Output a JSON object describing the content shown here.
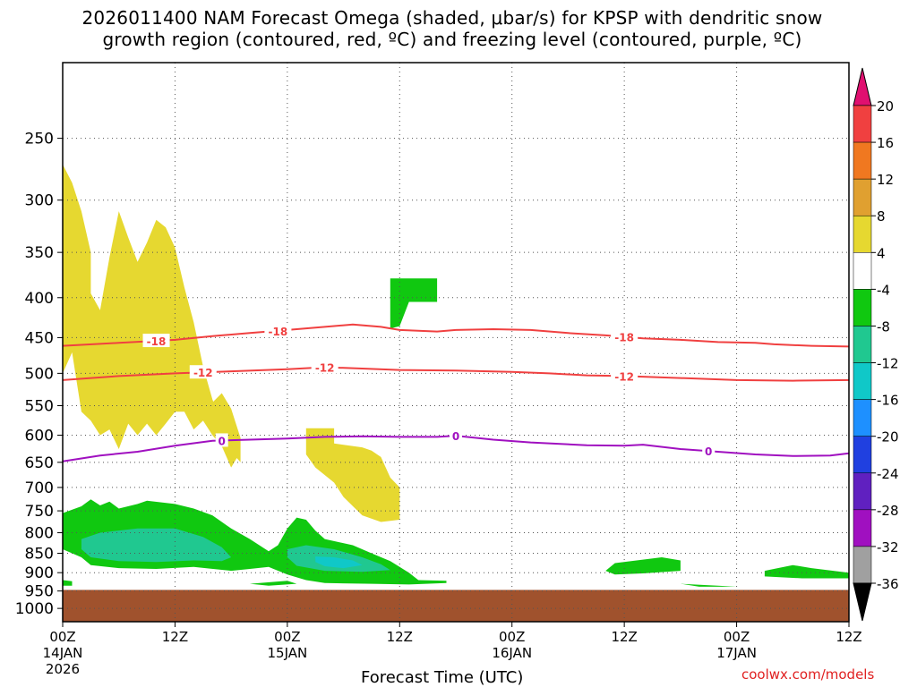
{
  "title_line1": "2026011400 NAM Forecast Omega (shaded, μbar/s) for KPSP with dendritic snow",
  "title_line2": "growth region (contoured, red, ºC) and freezing level (contoured, purple, ºC)",
  "credit": "coolwx.com/models",
  "chart_data": {
    "type": "heatmap",
    "xlabel": "Forecast Time (UTC)",
    "ylabel": "",
    "x_unit": "forecast hour",
    "xlim": [
      0,
      84
    ],
    "ylim": [
      1040,
      200
    ],
    "y_scale": "log",
    "grid": true,
    "x_ticks": [
      {
        "hour": 0,
        "label": "00Z",
        "date": "14JAN",
        "year": "2026"
      },
      {
        "hour": 12,
        "label": "12Z"
      },
      {
        "hour": 24,
        "label": "00Z",
        "date": "15JAN"
      },
      {
        "hour": 36,
        "label": "12Z"
      },
      {
        "hour": 48,
        "label": "00Z",
        "date": "16JAN"
      },
      {
        "hour": 60,
        "label": "12Z"
      },
      {
        "hour": 72,
        "label": "00Z",
        "date": "17JAN"
      },
      {
        "hour": 84,
        "label": "12Z"
      }
    ],
    "y_ticks": [
      "250",
      "300",
      "350",
      "400",
      "450",
      "500",
      "550",
      "600",
      "650",
      "700",
      "750",
      "800",
      "850",
      "900",
      "950",
      "1000"
    ],
    "ground_level_hpa": 947,
    "colorbar": {
      "labels": [
        "20",
        "16",
        "12",
        "8",
        "4",
        "-4",
        "-8",
        "-12",
        "-16",
        "-20",
        "-24",
        "-28",
        "-32",
        "-36"
      ],
      "colors": [
        "#e01070",
        "#f04040",
        "#f07820",
        "#e0a030",
        "#e6d830",
        "#ffffff",
        "#10c810",
        "#20c890",
        "#10c8c8",
        "#1e90ff",
        "#2040e0",
        "#6020c0",
        "#a010c0",
        "#a0a0a0",
        "#000000"
      ]
    },
    "contours": [
      {
        "name": "-18",
        "color": "#f04040",
        "label_hours": [
          10,
          23,
          60
        ],
        "points": [
          [
            0,
            461
          ],
          [
            6,
            457
          ],
          [
            12,
            453
          ],
          [
            16,
            448
          ],
          [
            20,
            444
          ],
          [
            24,
            440
          ],
          [
            28,
            436
          ],
          [
            31,
            433
          ],
          [
            34,
            436
          ],
          [
            36,
            440
          ],
          [
            40,
            442
          ],
          [
            42,
            440
          ],
          [
            46,
            439
          ],
          [
            50,
            440
          ],
          [
            54,
            444
          ],
          [
            58,
            447
          ],
          [
            62,
            451
          ],
          [
            66,
            453
          ],
          [
            70,
            456
          ],
          [
            74,
            457
          ],
          [
            76,
            459
          ],
          [
            80,
            461
          ],
          [
            84,
            462
          ]
        ]
      },
      {
        "name": "-12",
        "color": "#f04040",
        "label_hours": [
          15,
          28,
          60
        ],
        "points": [
          [
            0,
            510
          ],
          [
            6,
            504
          ],
          [
            12,
            500
          ],
          [
            18,
            497
          ],
          [
            24,
            494
          ],
          [
            28,
            491
          ],
          [
            32,
            493
          ],
          [
            36,
            495
          ],
          [
            42,
            496
          ],
          [
            48,
            498
          ],
          [
            52,
            500
          ],
          [
            56,
            503
          ],
          [
            60,
            504
          ],
          [
            66,
            507
          ],
          [
            72,
            510
          ],
          [
            78,
            511
          ],
          [
            84,
            510
          ]
        ]
      },
      {
        "name": "0",
        "color": "#a010c0",
        "label_hours": [
          17,
          42,
          69
        ],
        "points": [
          [
            0,
            648
          ],
          [
            4,
            637
          ],
          [
            8,
            630
          ],
          [
            12,
            619
          ],
          [
            16,
            610
          ],
          [
            20,
            608
          ],
          [
            24,
            606
          ],
          [
            28,
            603
          ],
          [
            32,
            602
          ],
          [
            36,
            603
          ],
          [
            40,
            603
          ],
          [
            42,
            601
          ],
          [
            46,
            608
          ],
          [
            50,
            613
          ],
          [
            56,
            618
          ],
          [
            60,
            619
          ],
          [
            62,
            617
          ],
          [
            66,
            625
          ],
          [
            70,
            630
          ],
          [
            74,
            635
          ],
          [
            78,
            638
          ],
          [
            82,
            637
          ],
          [
            84,
            633
          ]
        ]
      }
    ],
    "shaded_regions": [
      {
        "level": "4 to 8",
        "color": "#e6d830",
        "points": [
          [
            0,
            270
          ],
          [
            1,
            285
          ],
          [
            2,
            310
          ],
          [
            3,
            350
          ],
          [
            3,
            395
          ],
          [
            4,
            415
          ],
          [
            5,
            355
          ],
          [
            6,
            310
          ],
          [
            7,
            335
          ],
          [
            8,
            360
          ],
          [
            9,
            340
          ],
          [
            10,
            318
          ],
          [
            11,
            325
          ],
          [
            12,
            345
          ],
          [
            13,
            388
          ],
          [
            14,
            430
          ],
          [
            15,
            490
          ],
          [
            16,
            540
          ],
          [
            17,
            580
          ],
          [
            18,
            610
          ],
          [
            19,
            630
          ],
          [
            18,
            660
          ],
          [
            17,
            620
          ],
          [
            16,
            600
          ],
          [
            15,
            575
          ],
          [
            14,
            590
          ],
          [
            13,
            560
          ],
          [
            12,
            560
          ],
          [
            11,
            580
          ],
          [
            10,
            600
          ],
          [
            9,
            580
          ],
          [
            8,
            600
          ],
          [
            7,
            580
          ],
          [
            6,
            625
          ],
          [
            5,
            590
          ],
          [
            4,
            600
          ],
          [
            3,
            575
          ],
          [
            2,
            560
          ],
          [
            1,
            470
          ],
          [
            0,
            500
          ]
        ]
      },
      {
        "level": "4 to 8",
        "color": "#e6d830",
        "points": [
          [
            17,
            530
          ],
          [
            18,
            555
          ],
          [
            19,
            605
          ],
          [
            19,
            650
          ],
          [
            18,
            630
          ],
          [
            17,
            610
          ],
          [
            16,
            570
          ],
          [
            16,
            545
          ]
        ]
      },
      {
        "level": "4 to 8",
        "color": "#e6d830",
        "points": [
          [
            26,
            588
          ],
          [
            29,
            588
          ],
          [
            29,
            615
          ],
          [
            32,
            622
          ],
          [
            33,
            628
          ],
          [
            34,
            640
          ],
          [
            35,
            680
          ],
          [
            36,
            700
          ],
          [
            36,
            770
          ],
          [
            34,
            775
          ],
          [
            32,
            760
          ],
          [
            30,
            720
          ],
          [
            29,
            690
          ],
          [
            27,
            660
          ],
          [
            26,
            635
          ]
        ]
      },
      {
        "level": "-4 to -8",
        "color": "#10c810",
        "points": [
          [
            35,
            378
          ],
          [
            40,
            378
          ],
          [
            40,
            405
          ],
          [
            37,
            405
          ],
          [
            36,
            435
          ],
          [
            35,
            438
          ]
        ]
      },
      {
        "level": "-4 to -8",
        "color": "#10c810",
        "points": [
          [
            0,
            755
          ],
          [
            2,
            740
          ],
          [
            3,
            725
          ],
          [
            4,
            738
          ],
          [
            5,
            730
          ],
          [
            6,
            745
          ],
          [
            8,
            735
          ],
          [
            9,
            728
          ],
          [
            12,
            735
          ],
          [
            14,
            745
          ],
          [
            16,
            760
          ],
          [
            18,
            790
          ],
          [
            20,
            815
          ],
          [
            22,
            845
          ],
          [
            23,
            830
          ],
          [
            24,
            790
          ],
          [
            25,
            765
          ],
          [
            26,
            770
          ],
          [
            27,
            795
          ],
          [
            28,
            815
          ],
          [
            31,
            830
          ],
          [
            33,
            850
          ],
          [
            35,
            870
          ],
          [
            36,
            885
          ],
          [
            37,
            900
          ],
          [
            38,
            920
          ],
          [
            41,
            922
          ],
          [
            41,
            928
          ],
          [
            37,
            932
          ],
          [
            33,
            930
          ],
          [
            28,
            928
          ],
          [
            26,
            920
          ],
          [
            24,
            905
          ],
          [
            22,
            885
          ],
          [
            20,
            890
          ],
          [
            18,
            895
          ],
          [
            14,
            885
          ],
          [
            10,
            890
          ],
          [
            6,
            888
          ],
          [
            3,
            880
          ],
          [
            2,
            860
          ],
          [
            0,
            840
          ]
        ]
      },
      {
        "level": "-8 to -12",
        "color": "#20c890",
        "points": [
          [
            2,
            815
          ],
          [
            4,
            800
          ],
          [
            8,
            790
          ],
          [
            12,
            790
          ],
          [
            15,
            810
          ],
          [
            17,
            835
          ],
          [
            18,
            860
          ],
          [
            17,
            870
          ],
          [
            14,
            868
          ],
          [
            10,
            872
          ],
          [
            6,
            870
          ],
          [
            3,
            860
          ],
          [
            2,
            840
          ]
        ]
      },
      {
        "level": "-8 to -12",
        "color": "#20c890",
        "points": [
          [
            24,
            840
          ],
          [
            26,
            830
          ],
          [
            29,
            840
          ],
          [
            32,
            860
          ],
          [
            34,
            878
          ],
          [
            35,
            893
          ],
          [
            32,
            898
          ],
          [
            28,
            895
          ],
          [
            25,
            882
          ],
          [
            24,
            860
          ]
        ]
      },
      {
        "level": "-12 to -16",
        "color": "#10c8c8",
        "points": [
          [
            27,
            858
          ],
          [
            29,
            860
          ],
          [
            31,
            868
          ],
          [
            32,
            880
          ],
          [
            30,
            888
          ],
          [
            28,
            883
          ],
          [
            27,
            872
          ]
        ]
      },
      {
        "level": "-4 to -8",
        "color": "#10c810",
        "points": [
          [
            59,
            875
          ],
          [
            64,
            860
          ],
          [
            66,
            868
          ],
          [
            66,
            895
          ],
          [
            62,
            902
          ],
          [
            59,
            905
          ],
          [
            58,
            895
          ]
        ]
      },
      {
        "level": "-4 to -8",
        "color": "#10c810",
        "points": [
          [
            75,
            895
          ],
          [
            78,
            880
          ],
          [
            80,
            888
          ],
          [
            84,
            900
          ],
          [
            84,
            915
          ],
          [
            79,
            915
          ],
          [
            75,
            910
          ]
        ]
      },
      {
        "level": "-4 to -8",
        "color": "#10c810",
        "points": [
          [
            20,
            930
          ],
          [
            24,
            922
          ],
          [
            25,
            930
          ],
          [
            22,
            935
          ]
        ]
      },
      {
        "level": "-4 to -8",
        "color": "#10c810",
        "points": [
          [
            66,
            930
          ],
          [
            70,
            935
          ],
          [
            72,
            938
          ],
          [
            68,
            938
          ]
        ]
      },
      {
        "level": "-4 to -8",
        "color": "#10c810",
        "points": [
          [
            0,
            920
          ],
          [
            1,
            923
          ],
          [
            1,
            935
          ],
          [
            0,
            935
          ]
        ]
      }
    ]
  }
}
